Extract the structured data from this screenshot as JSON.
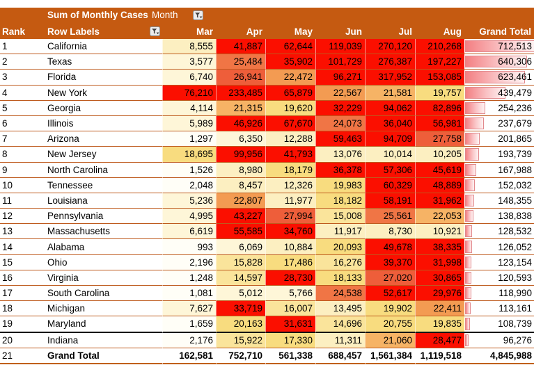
{
  "title_row": {
    "measure_label": "Sum of Monthly Cases",
    "field_label": "Month"
  },
  "header": {
    "rank": "Rank",
    "row_labels": "Row Labels",
    "months": [
      "Mar",
      "Apr",
      "May",
      "Jun",
      "Jul",
      "Aug"
    ],
    "grand_total": "Grand Total"
  },
  "icons": {
    "month_filter": "filter-funnel-icon",
    "row_labels_filter": "filter-funnel-icon"
  },
  "colors": {
    "header_bg": "#C55A11",
    "header_text": "#FFFFFF",
    "row_line": "#BE5A1D",
    "black_divider": "#141414",
    "bar_border": "#E2898D",
    "bar_fill_start": "#F37F82",
    "bar_fill_end": "#FEF3F3"
  },
  "palette": {
    "w": "#FFFEF7",
    "c": "#FEF6D8",
    "p": "#FCEFC1",
    "ly": "#FAE49B",
    "y": "#F8DC7F",
    "o1": "#F6B365",
    "o2": "#F39B52",
    "t1": "#F07545",
    "t2": "#EE5E3A",
    "r": "#FB0F00"
  },
  "rows": [
    {
      "rank": "1",
      "state": "California",
      "values": [
        "8,555",
        "41,887",
        "62,644",
        "119,039",
        "270,120",
        "210,268"
      ],
      "colors": [
        "p",
        "r",
        "r",
        "r",
        "r",
        "r"
      ],
      "total": "712,513",
      "bar_pct": 100
    },
    {
      "rank": "2",
      "state": "Texas",
      "values": [
        "3,577",
        "25,484",
        "35,902",
        "101,729",
        "276,387",
        "197,227"
      ],
      "colors": [
        "c",
        "t1",
        "r",
        "r",
        "r",
        "r"
      ],
      "total": "640,306",
      "bar_pct": 88.9
    },
    {
      "rank": "3",
      "state": "Florida",
      "values": [
        "6,740",
        "26,941",
        "22,472",
        "96,271",
        "317,952",
        "153,085"
      ],
      "colors": [
        "c",
        "t2",
        "o2",
        "r",
        "r",
        "r"
      ],
      "total": "623,461",
      "bar_pct": 86.3
    },
    {
      "rank": "4",
      "state": "New York",
      "values": [
        "76,210",
        "233,485",
        "65,879",
        "22,567",
        "21,581",
        "19,757"
      ],
      "colors": [
        "r",
        "r",
        "r",
        "o2",
        "o1",
        "y"
      ],
      "total": "439,479",
      "bar_pct": 57.9
    },
    {
      "rank": "5",
      "state": "Georgia",
      "values": [
        "4,114",
        "21,315",
        "19,620",
        "32,229",
        "94,062",
        "82,896"
      ],
      "colors": [
        "c",
        "o1",
        "y",
        "r",
        "r",
        "r"
      ],
      "total": "254,236",
      "bar_pct": 29.4
    },
    {
      "rank": "6",
      "state": "Illinois",
      "values": [
        "5,989",
        "46,926",
        "67,670",
        "24,073",
        "36,040",
        "56,981"
      ],
      "colors": [
        "c",
        "r",
        "r",
        "t1",
        "r",
        "r"
      ],
      "total": "237,679",
      "bar_pct": 26.8
    },
    {
      "rank": "7",
      "state": "Arizona",
      "values": [
        "1,297",
        "6,350",
        "12,288",
        "59,463",
        "94,709",
        "27,758"
      ],
      "colors": [
        "w",
        "c",
        "p",
        "r",
        "r",
        "t2"
      ],
      "total": "201,865",
      "bar_pct": 21.3
    },
    {
      "rank": "8",
      "state": "New Jersey",
      "values": [
        "18,695",
        "99,956",
        "41,793",
        "13,076",
        "10,014",
        "10,205"
      ],
      "colors": [
        "y",
        "r",
        "r",
        "p",
        "p",
        "p"
      ],
      "total": "193,739",
      "bar_pct": 20.0
    },
    {
      "rank": "9",
      "state": "North Carolina",
      "values": [
        "1,526",
        "8,980",
        "18,179",
        "36,378",
        "57,306",
        "45,619"
      ],
      "colors": [
        "w",
        "p",
        "y",
        "r",
        "r",
        "r"
      ],
      "total": "167,988",
      "bar_pct": 16.1
    },
    {
      "rank": "10",
      "state": "Tennessee",
      "values": [
        "2,048",
        "8,457",
        "12,326",
        "19,983",
        "60,329",
        "48,889"
      ],
      "colors": [
        "w",
        "p",
        "p",
        "y",
        "r",
        "r"
      ],
      "total": "152,032",
      "bar_pct": 13.6
    },
    {
      "rank": "11",
      "state": "Louisiana",
      "values": [
        "5,236",
        "22,807",
        "11,977",
        "18,182",
        "58,191",
        "31,962"
      ],
      "colors": [
        "c",
        "o2",
        "p",
        "y",
        "r",
        "r"
      ],
      "total": "148,355",
      "bar_pct": 13.0
    },
    {
      "rank": "12",
      "state": "Pennsylvania",
      "values": [
        "4,995",
        "43,227",
        "27,994",
        "15,008",
        "25,561",
        "22,053"
      ],
      "colors": [
        "c",
        "r",
        "t2",
        "ly",
        "t1",
        "o1"
      ],
      "total": "138,838",
      "bar_pct": 11.6
    },
    {
      "rank": "13",
      "state": "Massachusetts",
      "values": [
        "6,619",
        "55,585",
        "34,760",
        "11,917",
        "8,730",
        "10,921"
      ],
      "colors": [
        "c",
        "r",
        "r",
        "p",
        "p",
        "p"
      ],
      "total": "128,532",
      "bar_pct": 10.0
    },
    {
      "rank": "14",
      "state": "Alabama",
      "values": [
        "993",
        "6,069",
        "10,884",
        "20,093",
        "49,678",
        "38,335"
      ],
      "colors": [
        "w",
        "c",
        "p",
        "y",
        "r",
        "r"
      ],
      "total": "126,052",
      "bar_pct": 9.6
    },
    {
      "rank": "15",
      "state": "Ohio",
      "values": [
        "2,196",
        "15,828",
        "17,486",
        "16,276",
        "39,370",
        "31,998"
      ],
      "colors": [
        "w",
        "ly",
        "y",
        "ly",
        "r",
        "r"
      ],
      "total": "123,154",
      "bar_pct": 9.1
    },
    {
      "rank": "16",
      "state": "Virginia",
      "values": [
        "1,248",
        "14,597",
        "28,730",
        "18,133",
        "27,020",
        "30,865"
      ],
      "colors": [
        "w",
        "ly",
        "r",
        "y",
        "t2",
        "r"
      ],
      "total": "120,593",
      "bar_pct": 8.7
    },
    {
      "rank": "17",
      "state": "South Carolina",
      "values": [
        "1,081",
        "5,012",
        "5,766",
        "24,538",
        "52,617",
        "29,976"
      ],
      "colors": [
        "w",
        "c",
        "c",
        "t1",
        "r",
        "r"
      ],
      "total": "118,990",
      "bar_pct": 8.5
    },
    {
      "rank": "18",
      "state": "Michigan",
      "values": [
        "7,627",
        "33,719",
        "16,007",
        "13,495",
        "19,902",
        "22,411"
      ],
      "colors": [
        "c",
        "r",
        "ly",
        "p",
        "y",
        "o2"
      ],
      "total": "113,161",
      "bar_pct": 7.6
    },
    {
      "rank": "19",
      "state": "Maryland",
      "values": [
        "1,659",
        "20,163",
        "31,631",
        "14,696",
        "20,755",
        "19,835"
      ],
      "colors": [
        "w",
        "y",
        "r",
        "ly",
        "y",
        "y"
      ],
      "total": "108,739",
      "bar_pct": 6.9,
      "thick_bottom": true
    },
    {
      "rank": "20",
      "state": "Indiana",
      "values": [
        "2,176",
        "15,922",
        "17,330",
        "11,311",
        "21,060",
        "28,477"
      ],
      "colors": [
        "w",
        "ly",
        "y",
        "p",
        "o1",
        "r"
      ],
      "total": "96,276",
      "bar_pct": 5.0
    }
  ],
  "grand_total_row": {
    "rank": "21",
    "label": "Grand Total",
    "values": [
      "162,581",
      "752,710",
      "561,338",
      "688,457",
      "1,561,384",
      "1,119,518"
    ],
    "total": "4,845,988"
  }
}
